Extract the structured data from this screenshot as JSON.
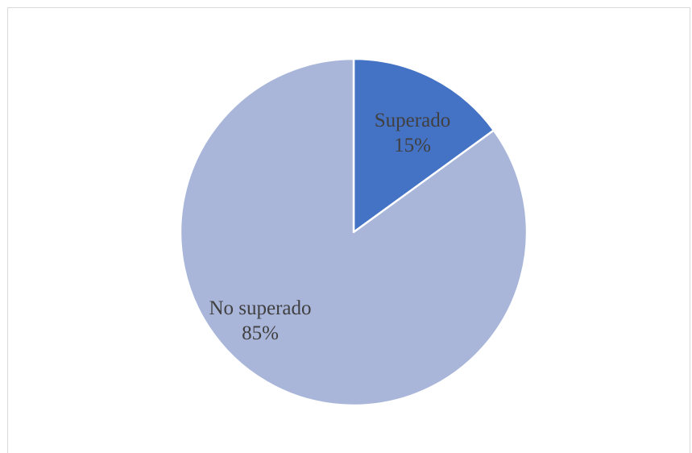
{
  "chart_data": {
    "type": "pie",
    "categories": [
      "Superado",
      "No superado"
    ],
    "values": [
      15,
      85
    ],
    "unit": "%",
    "colors": [
      "#4472c4",
      "#a9b6da"
    ],
    "start_angle": "top, clockwise",
    "labels": [
      {
        "name": "Superado",
        "value_text": "15%"
      },
      {
        "name": "No superado",
        "value_text": "85%"
      }
    ],
    "legend": "none",
    "title": ""
  }
}
